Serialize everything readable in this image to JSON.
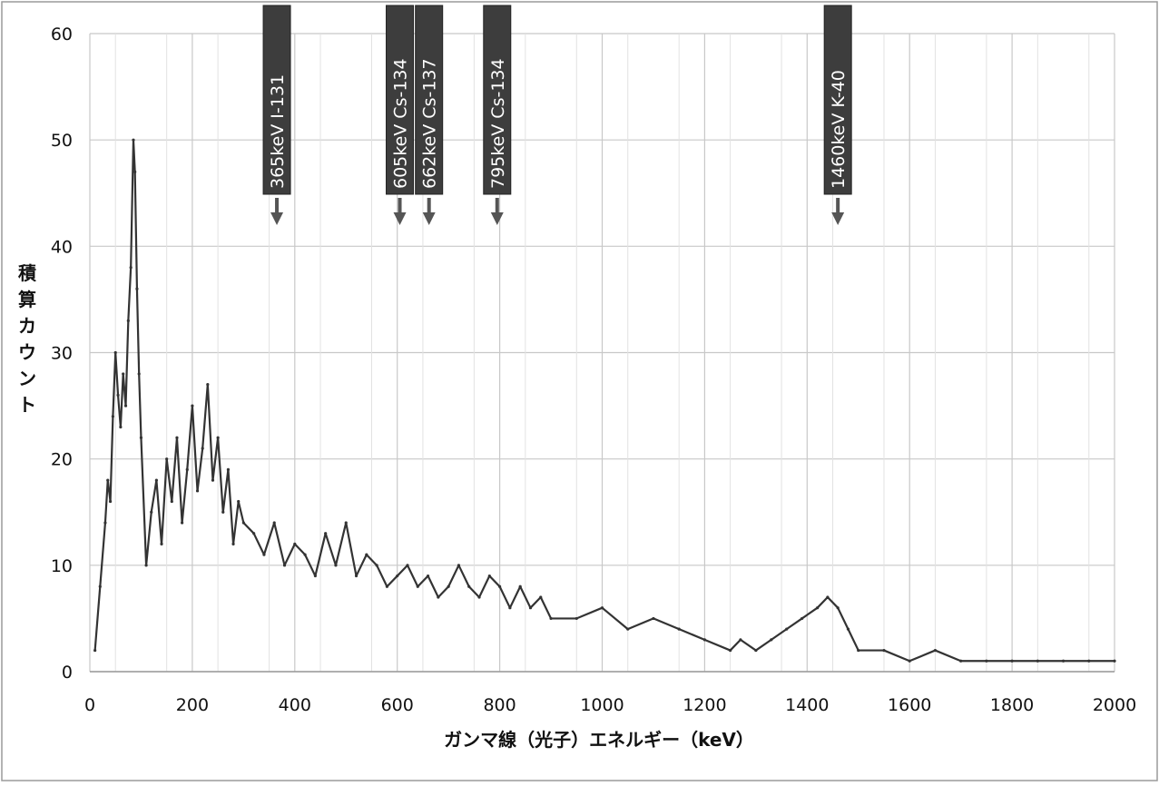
{
  "chart_data": {
    "type": "line",
    "title": "",
    "xlabel": "ガンマ線（光子）エネルギー（keV）",
    "ylabel": "積算カウント",
    "xlim": [
      0,
      2000
    ],
    "ylim": [
      0,
      60
    ],
    "xticks": [
      0,
      200,
      400,
      600,
      800,
      1000,
      1200,
      1400,
      1600,
      1800,
      2000
    ],
    "xtick_labels": [
      "0",
      "200",
      "400",
      "600",
      "800",
      "1000",
      "1200",
      "1400",
      "1600",
      "1800",
      "2000"
    ],
    "yticks": [
      0,
      10,
      20,
      30,
      40,
      50,
      60
    ],
    "ytick_labels": [
      "0",
      "10",
      "20",
      "30",
      "40",
      "50",
      "60"
    ],
    "grid": true,
    "legend": "none",
    "annotations": [
      {
        "energy": 365,
        "label": "365keV I-131"
      },
      {
        "energy": 605,
        "label": "605keV Cs-134"
      },
      {
        "energy": 662,
        "label": "662keV Cs-137"
      },
      {
        "energy": 795,
        "label": "795keV Cs-134"
      },
      {
        "energy": 1460,
        "label": "1460keV K-40"
      }
    ],
    "series": [
      {
        "color": "#333333",
        "x": [
          10,
          20,
          30,
          35,
          40,
          45,
          50,
          55,
          60,
          65,
          70,
          75,
          80,
          85,
          88,
          92,
          96,
          100,
          110,
          120,
          130,
          140,
          150,
          160,
          170,
          180,
          190,
          200,
          210,
          220,
          230,
          240,
          250,
          260,
          270,
          280,
          290,
          300,
          320,
          340,
          360,
          380,
          400,
          420,
          440,
          460,
          480,
          500,
          520,
          540,
          560,
          580,
          600,
          620,
          640,
          660,
          680,
          700,
          720,
          740,
          760,
          780,
          800,
          820,
          840,
          860,
          880,
          900,
          950,
          1000,
          1050,
          1100,
          1150,
          1200,
          1250,
          1270,
          1300,
          1330,
          1360,
          1390,
          1420,
          1440,
          1460,
          1480,
          1500,
          1550,
          1600,
          1650,
          1700,
          1750,
          1800,
          1850,
          1900,
          1950,
          2000
        ],
        "y": [
          2,
          8,
          14,
          18,
          16,
          24,
          30,
          26,
          23,
          28,
          25,
          33,
          38,
          50,
          47,
          36,
          28,
          22,
          10,
          15,
          18,
          12,
          20,
          16,
          22,
          14,
          19,
          25,
          17,
          21,
          27,
          18,
          22,
          15,
          19,
          12,
          16,
          14,
          13,
          11,
          14,
          10,
          12,
          11,
          9,
          13,
          10,
          14,
          9,
          11,
          10,
          8,
          9,
          10,
          8,
          9,
          7,
          8,
          10,
          8,
          7,
          9,
          8,
          6,
          8,
          6,
          7,
          5,
          5,
          6,
          4,
          5,
          4,
          3,
          2,
          3,
          2,
          3,
          4,
          5,
          6,
          7,
          6,
          4,
          2,
          2,
          1,
          2,
          1,
          1,
          1,
          1,
          1,
          1,
          1
        ]
      }
    ]
  }
}
